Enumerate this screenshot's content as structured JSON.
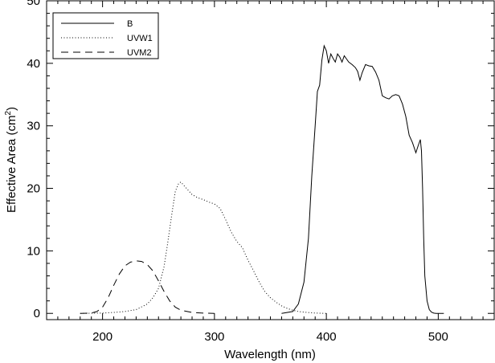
{
  "chart_data": {
    "type": "line",
    "xlabel": "Wavelength (nm)",
    "ylabel": "Effective Area (cm",
    "ylabel_sup": "2",
    "ylabel_end": ")",
    "xlim": [
      150,
      550
    ],
    "ylim": [
      -1,
      50
    ],
    "xticks": [
      200,
      300,
      400,
      500
    ],
    "yticks": [
      0,
      10,
      20,
      30,
      40,
      50
    ],
    "grid": false,
    "legend_position": "top-left",
    "series": [
      {
        "name": "B",
        "style": "solid",
        "x": [
          360,
          370,
          375,
          380,
          384,
          387,
          390,
          392,
          394,
          396,
          398,
          400,
          402,
          404,
          406,
          408,
          410,
          412,
          414,
          416,
          418,
          420,
          423,
          426,
          428,
          430,
          432,
          435,
          438,
          441,
          444,
          447,
          450,
          453,
          456,
          459,
          462,
          465,
          468,
          471,
          474,
          477,
          480,
          482,
          484,
          485,
          486,
          487,
          488,
          490,
          492,
          494,
          496,
          498,
          500,
          505
        ],
        "y": [
          0,
          0.3,
          1.5,
          5,
          12,
          22,
          30,
          35.5,
          36.5,
          40.5,
          42.8,
          42,
          40,
          41.5,
          40.8,
          40.2,
          41.5,
          41,
          40.2,
          41.2,
          40.7,
          40.2,
          39.8,
          39.3,
          38.7,
          37.3,
          38.5,
          39.8,
          39.6,
          39.5,
          38.6,
          37.3,
          34.8,
          34.5,
          34.3,
          34.8,
          35,
          34.8,
          33.5,
          31.5,
          28.5,
          27.3,
          25.7,
          26.8,
          27.8,
          26,
          20,
          12,
          6,
          2,
          0.6,
          0.2,
          0.05,
          0,
          0,
          0
        ]
      },
      {
        "name": "UVW1",
        "style": "dotted",
        "x": [
          180,
          200,
          210,
          220,
          230,
          240,
          245,
          250,
          255,
          258,
          262,
          265,
          268,
          270,
          272,
          275,
          280,
          285,
          290,
          295,
          300,
          305,
          310,
          315,
          320,
          325,
          330,
          335,
          340,
          345,
          350,
          355,
          360,
          365,
          370,
          375,
          380,
          390,
          400
        ],
        "y": [
          0,
          0.05,
          0.15,
          0.3,
          0.6,
          1.5,
          2.5,
          4,
          7.5,
          11,
          16,
          19.5,
          20.8,
          21,
          20.6,
          20,
          19,
          18.5,
          18.2,
          17.8,
          17.5,
          16.8,
          15,
          13,
          11.5,
          10.5,
          8.5,
          6.8,
          5,
          3.5,
          2.5,
          1.8,
          1.2,
          0.8,
          0.5,
          0.3,
          0.2,
          0.05,
          0
        ]
      },
      {
        "name": "UVM2",
        "style": "dashed",
        "x": [
          180,
          190,
          195,
          200,
          205,
          210,
          215,
          220,
          225,
          230,
          235,
          240,
          245,
          250,
          255,
          260,
          265,
          270,
          280,
          290,
          300
        ],
        "y": [
          0,
          0.05,
          0.3,
          1,
          2.5,
          4.5,
          6.3,
          7.6,
          8.2,
          8.4,
          8.3,
          7.8,
          6.8,
          5.2,
          3.5,
          2,
          1,
          0.5,
          0.15,
          0.05,
          0
        ]
      }
    ]
  }
}
